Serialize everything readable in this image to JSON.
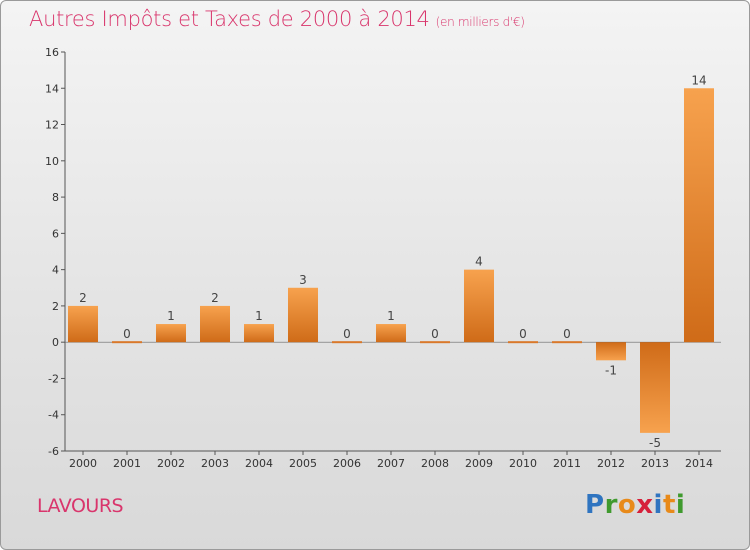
{
  "header": {
    "title": "Autres Impôts et Taxes de 2000 à 2014",
    "unit": "(en milliers d'€)"
  },
  "footer": {
    "commune": "LAVOURS",
    "logo_letters": [
      "P",
      "r",
      "o",
      "x",
      "i",
      "t",
      "i"
    ]
  },
  "colors": {
    "title": "#d9356c",
    "bar_light": "#f7a24e",
    "bar_dark": "#d06d1a",
    "logo": [
      "#2f74c0",
      "#3f9a2e",
      "#e88a1a",
      "#d6203a",
      "#2f74c0",
      "#e88a1a",
      "#3f9a2e"
    ]
  },
  "chart_data": {
    "type": "bar",
    "title": "Autres Impôts et Taxes de 2000 à 2014",
    "subtitle": "(en milliers d'€)",
    "xlabel": "",
    "ylabel": "",
    "categories": [
      "2000",
      "2001",
      "2002",
      "2003",
      "2004",
      "2005",
      "2006",
      "2007",
      "2008",
      "2009",
      "2010",
      "2011",
      "2012",
      "2013",
      "2014"
    ],
    "values": [
      2,
      0,
      1,
      2,
      1,
      3,
      0,
      1,
      0,
      4,
      0,
      0,
      -1,
      -5,
      14
    ],
    "ylim": [
      -6,
      16
    ],
    "yticks": [
      -6,
      -4,
      -2,
      0,
      2,
      4,
      6,
      8,
      10,
      12,
      14,
      16
    ],
    "grid": false,
    "legend": "none"
  }
}
